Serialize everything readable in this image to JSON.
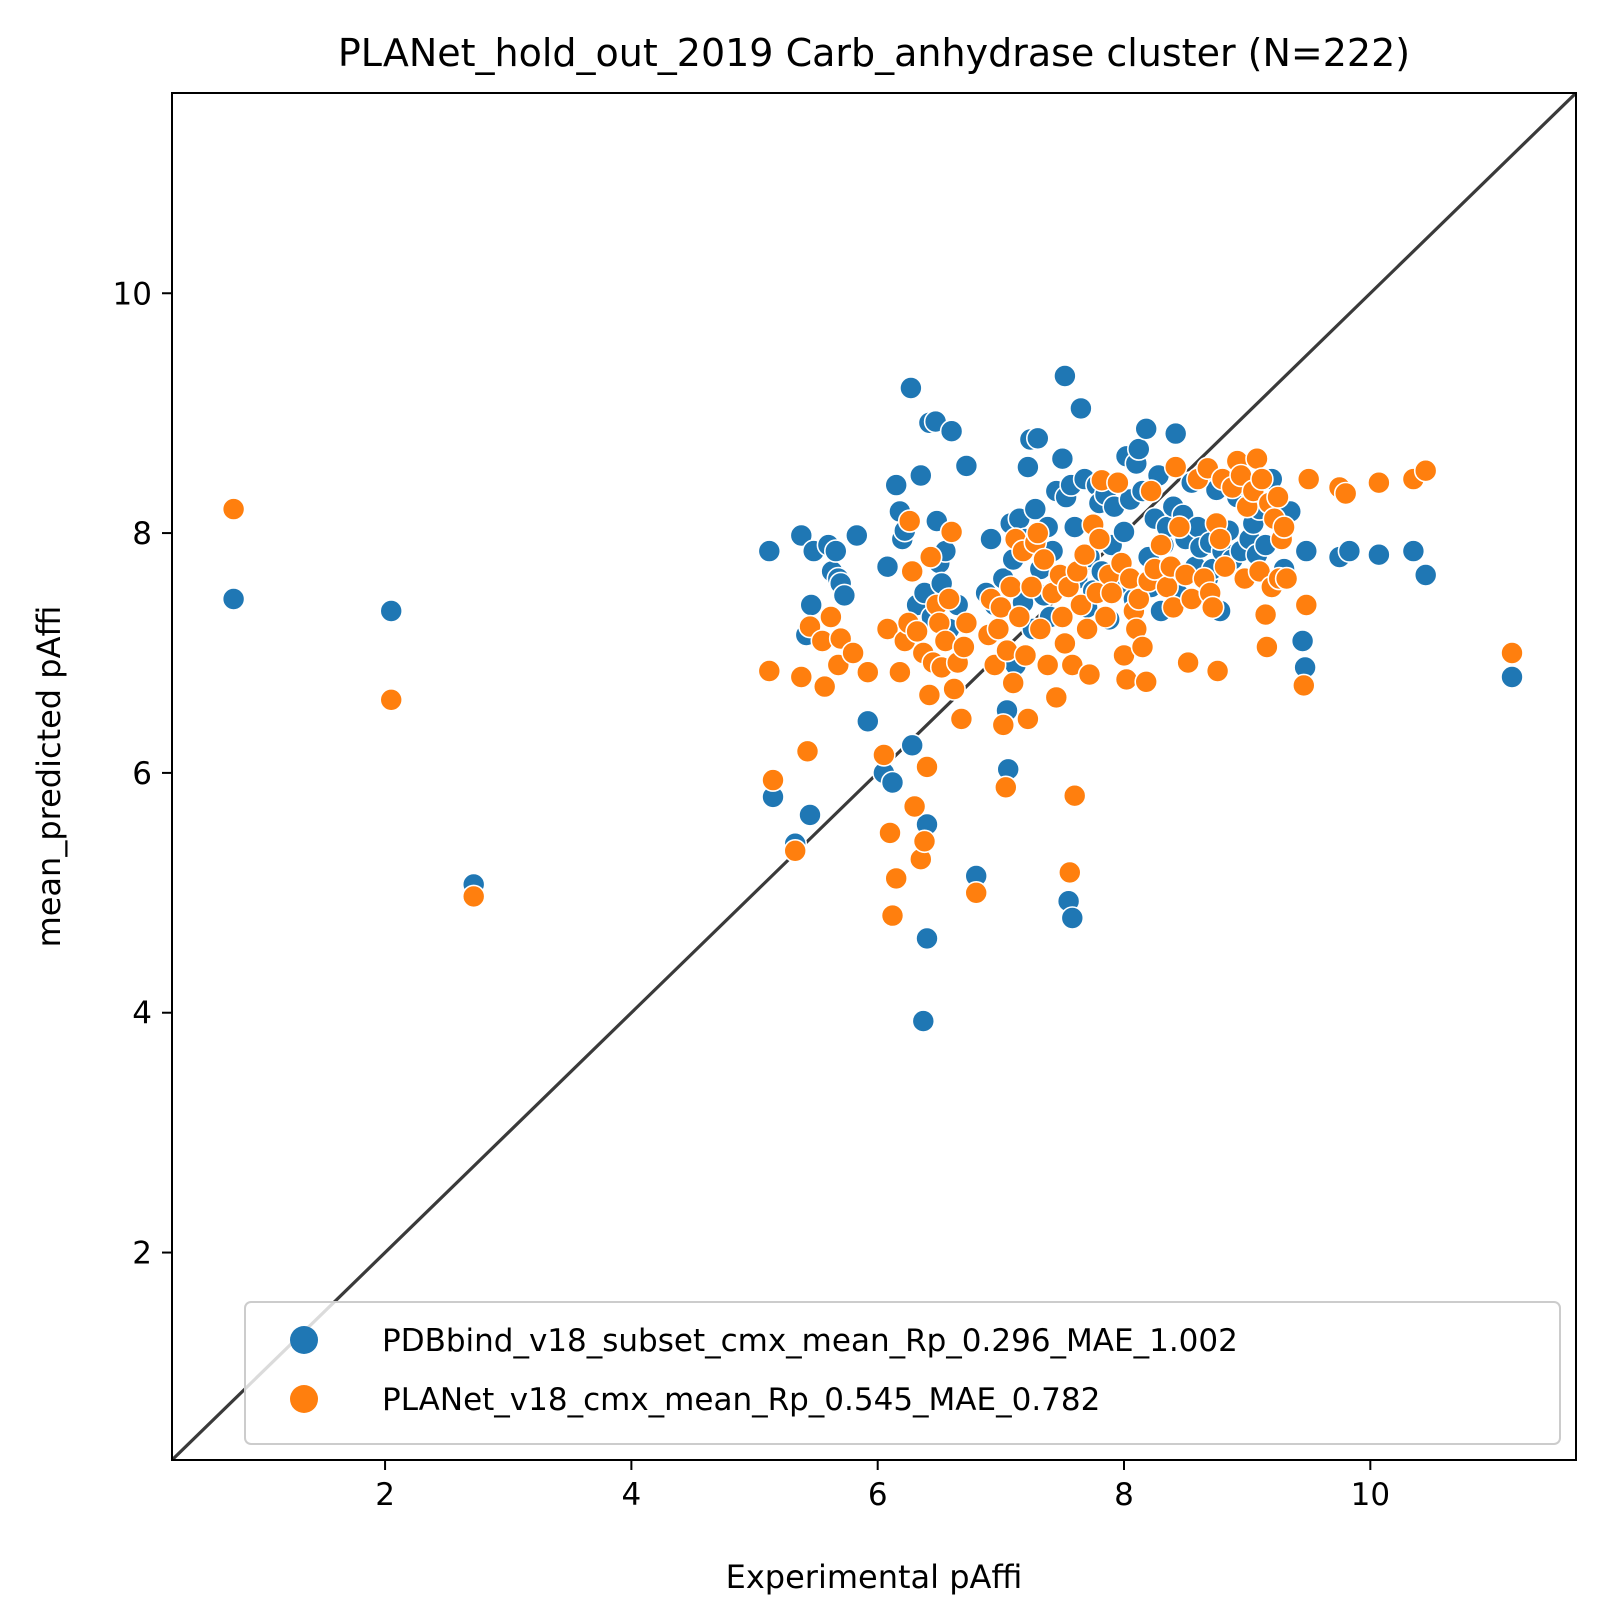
{
  "chart_data": {
    "type": "scatter",
    "title": "PLANet_hold_out_2019 Carb_anhydrase cluster (N=222)",
    "xlabel": "Experimental pAffi",
    "ylabel": "mean_predicted pAffi",
    "xlim": [
      0.27,
      11.67
    ],
    "ylim": [
      0.27,
      11.67
    ],
    "xticks": [
      2,
      4,
      6,
      8,
      10
    ],
    "yticks": [
      2,
      4,
      6,
      8,
      10
    ],
    "grid": false,
    "legend_position": "lower right",
    "reference_line": {
      "type": "identity",
      "color": "#3a3a3a"
    },
    "series": [
      {
        "name": "PDBbind_v18_subset_cmx_mean_Rp_0.296_MAE_1.002",
        "color": "#1f77b4",
        "points": [
          [
            0.77,
            7.45
          ],
          [
            2.05,
            7.35
          ],
          [
            2.72,
            5.07
          ],
          [
            5.12,
            7.85
          ],
          [
            5.15,
            5.8
          ],
          [
            5.33,
            5.41
          ],
          [
            5.38,
            7.98
          ],
          [
            5.42,
            7.15
          ],
          [
            5.45,
            5.65
          ],
          [
            5.46,
            7.4
          ],
          [
            5.48,
            7.85
          ],
          [
            5.6,
            7.9
          ],
          [
            5.63,
            7.68
          ],
          [
            5.66,
            7.85
          ],
          [
            5.68,
            7.62
          ],
          [
            5.7,
            7.58
          ],
          [
            5.73,
            7.48
          ],
          [
            5.83,
            7.98
          ],
          [
            5.92,
            6.43
          ],
          [
            6.05,
            6.0
          ],
          [
            6.08,
            7.72
          ],
          [
            6.12,
            5.92
          ],
          [
            6.15,
            8.4
          ],
          [
            6.18,
            8.18
          ],
          [
            6.2,
            7.95
          ],
          [
            6.22,
            8.02
          ],
          [
            6.27,
            9.21
          ],
          [
            6.28,
            6.23
          ],
          [
            6.32,
            7.4
          ],
          [
            6.35,
            8.48
          ],
          [
            6.37,
            3.93
          ],
          [
            6.38,
            7.5
          ],
          [
            6.4,
            5.57
          ],
          [
            6.4,
            4.62
          ],
          [
            6.42,
            8.92
          ],
          [
            6.44,
            7.3
          ],
          [
            6.47,
            8.93
          ],
          [
            6.48,
            8.1
          ],
          [
            6.5,
            7.75
          ],
          [
            6.52,
            7.58
          ],
          [
            6.55,
            7.85
          ],
          [
            6.58,
            7.2
          ],
          [
            6.6,
            8.85
          ],
          [
            6.65,
            7.4
          ],
          [
            6.72,
            8.56
          ],
          [
            6.8,
            5.14
          ],
          [
            6.88,
            7.5
          ],
          [
            6.92,
            7.95
          ],
          [
            6.95,
            7.4
          ],
          [
            6.98,
            7.2
          ],
          [
            7.02,
            7.62
          ],
          [
            7.05,
            6.52
          ],
          [
            7.06,
            6.03
          ],
          [
            7.08,
            8.08
          ],
          [
            7.1,
            7.78
          ],
          [
            7.12,
            6.9
          ],
          [
            7.15,
            8.12
          ],
          [
            7.18,
            7.42
          ],
          [
            7.2,
            7.95
          ],
          [
            7.22,
            8.55
          ],
          [
            7.24,
            8.78
          ],
          [
            7.26,
            7.2
          ],
          [
            7.28,
            8.2
          ],
          [
            7.3,
            8.79
          ],
          [
            7.32,
            7.7
          ],
          [
            7.35,
            7.48
          ],
          [
            7.38,
            8.05
          ],
          [
            7.4,
            7.3
          ],
          [
            7.42,
            7.85
          ],
          [
            7.45,
            8.35
          ],
          [
            7.48,
            7.6
          ],
          [
            7.5,
            8.62
          ],
          [
            7.52,
            9.31
          ],
          [
            7.53,
            8.3
          ],
          [
            7.55,
            4.93
          ],
          [
            7.57,
            8.4
          ],
          [
            7.58,
            4.79
          ],
          [
            7.6,
            8.05
          ],
          [
            7.62,
            7.62
          ],
          [
            7.65,
            9.04
          ],
          [
            7.68,
            8.45
          ],
          [
            7.7,
            7.38
          ],
          [
            7.72,
            7.8
          ],
          [
            7.75,
            7.52
          ],
          [
            7.78,
            8.4
          ],
          [
            7.8,
            8.25
          ],
          [
            7.82,
            7.68
          ],
          [
            7.85,
            8.32
          ],
          [
            7.88,
            7.28
          ],
          [
            7.9,
            7.9
          ],
          [
            7.92,
            8.22
          ],
          [
            7.95,
            8.42
          ],
          [
            7.98,
            7.58
          ],
          [
            8.0,
            8.01
          ],
          [
            8.02,
            8.64
          ],
          [
            8.05,
            8.28
          ],
          [
            8.08,
            7.45
          ],
          [
            8.1,
            8.58
          ],
          [
            8.12,
            8.7
          ],
          [
            8.15,
            8.35
          ],
          [
            8.18,
            8.87
          ],
          [
            8.2,
            7.8
          ],
          [
            8.22,
            7.55
          ],
          [
            8.25,
            8.12
          ],
          [
            8.28,
            8.48
          ],
          [
            8.3,
            7.35
          ],
          [
            8.32,
            7.9
          ],
          [
            8.35,
            8.05
          ],
          [
            8.38,
            7.68
          ],
          [
            8.4,
            8.22
          ],
          [
            8.42,
            8.83
          ],
          [
            8.45,
            7.48
          ],
          [
            8.48,
            8.15
          ],
          [
            8.5,
            7.95
          ],
          [
            8.55,
            8.42
          ],
          [
            8.58,
            7.72
          ],
          [
            8.6,
            8.05
          ],
          [
            8.62,
            7.88
          ],
          [
            8.65,
            8.48
          ],
          [
            8.68,
            7.62
          ],
          [
            8.7,
            7.92
          ],
          [
            8.72,
            7.7
          ],
          [
            8.75,
            8.36
          ],
          [
            8.78,
            7.35
          ],
          [
            8.8,
            7.85
          ],
          [
            8.85,
            8.02
          ],
          [
            8.88,
            7.78
          ],
          [
            8.92,
            8.3
          ],
          [
            8.95,
            7.85
          ],
          [
            8.98,
            8.4
          ],
          [
            9.02,
            7.95
          ],
          [
            9.05,
            8.08
          ],
          [
            9.08,
            7.82
          ],
          [
            9.1,
            8.2
          ],
          [
            9.15,
            7.9
          ],
          [
            9.2,
            8.45
          ],
          [
            9.25,
            8.12
          ],
          [
            9.3,
            7.7
          ],
          [
            9.35,
            8.18
          ],
          [
            9.45,
            7.1
          ],
          [
            9.47,
            6.88
          ],
          [
            9.48,
            7.85
          ],
          [
            9.75,
            7.8
          ],
          [
            9.83,
            7.85
          ],
          [
            10.07,
            7.82
          ],
          [
            10.35,
            7.85
          ],
          [
            10.45,
            7.65
          ],
          [
            11.15,
            6.8
          ]
        ]
      },
      {
        "name": "PLANet_v18_cmx_mean_Rp_0.545_MAE_0.782",
        "color": "#ff7f0e",
        "points": [
          [
            0.77,
            8.2
          ],
          [
            2.05,
            6.61
          ],
          [
            2.72,
            4.97
          ],
          [
            5.12,
            6.85
          ],
          [
            5.15,
            5.94
          ],
          [
            5.33,
            5.35
          ],
          [
            5.38,
            6.8
          ],
          [
            5.43,
            6.18
          ],
          [
            5.45,
            7.22
          ],
          [
            5.55,
            7.1
          ],
          [
            5.57,
            6.72
          ],
          [
            5.62,
            7.3
          ],
          [
            5.68,
            6.9
          ],
          [
            5.7,
            7.12
          ],
          [
            5.8,
            7.0
          ],
          [
            5.92,
            6.84
          ],
          [
            6.05,
            6.15
          ],
          [
            6.08,
            7.2
          ],
          [
            6.1,
            5.5
          ],
          [
            6.12,
            4.81
          ],
          [
            6.15,
            5.12
          ],
          [
            6.18,
            6.84
          ],
          [
            6.22,
            7.1
          ],
          [
            6.25,
            7.25
          ],
          [
            6.26,
            8.1
          ],
          [
            6.28,
            7.68
          ],
          [
            6.3,
            5.72
          ],
          [
            6.32,
            7.18
          ],
          [
            6.35,
            5.28
          ],
          [
            6.37,
            7.0
          ],
          [
            6.38,
            5.43
          ],
          [
            6.4,
            6.05
          ],
          [
            6.42,
            6.65
          ],
          [
            6.43,
            7.8
          ],
          [
            6.45,
            6.92
          ],
          [
            6.48,
            7.4
          ],
          [
            6.5,
            7.25
          ],
          [
            6.52,
            6.88
          ],
          [
            6.55,
            7.1
          ],
          [
            6.58,
            7.45
          ],
          [
            6.6,
            8.01
          ],
          [
            6.62,
            6.7
          ],
          [
            6.65,
            6.92
          ],
          [
            6.68,
            6.45
          ],
          [
            6.7,
            7.05
          ],
          [
            6.72,
            7.25
          ],
          [
            6.8,
            5.0
          ],
          [
            6.9,
            7.15
          ],
          [
            6.92,
            7.45
          ],
          [
            6.95,
            6.9
          ],
          [
            6.98,
            7.2
          ],
          [
            7.0,
            7.38
          ],
          [
            7.02,
            6.4
          ],
          [
            7.04,
            5.88
          ],
          [
            7.05,
            7.02
          ],
          [
            7.08,
            7.55
          ],
          [
            7.1,
            6.75
          ],
          [
            7.12,
            7.95
          ],
          [
            7.15,
            7.3
          ],
          [
            7.18,
            7.85
          ],
          [
            7.2,
            6.98
          ],
          [
            7.22,
            6.45
          ],
          [
            7.25,
            7.55
          ],
          [
            7.28,
            7.92
          ],
          [
            7.3,
            8.0
          ],
          [
            7.32,
            7.2
          ],
          [
            7.35,
            7.78
          ],
          [
            7.38,
            6.9
          ],
          [
            7.42,
            7.5
          ],
          [
            7.45,
            6.63
          ],
          [
            7.48,
            7.65
          ],
          [
            7.5,
            7.3
          ],
          [
            7.52,
            7.08
          ],
          [
            7.55,
            7.55
          ],
          [
            7.56,
            5.17
          ],
          [
            7.58,
            6.9
          ],
          [
            7.6,
            5.81
          ],
          [
            7.62,
            7.68
          ],
          [
            7.65,
            7.4
          ],
          [
            7.68,
            7.82
          ],
          [
            7.7,
            7.2
          ],
          [
            7.72,
            6.82
          ],
          [
            7.75,
            8.07
          ],
          [
            7.78,
            7.5
          ],
          [
            7.8,
            7.95
          ],
          [
            7.82,
            8.44
          ],
          [
            7.85,
            7.3
          ],
          [
            7.88,
            7.65
          ],
          [
            7.9,
            7.5
          ],
          [
            7.95,
            8.42
          ],
          [
            7.98,
            7.75
          ],
          [
            8.0,
            6.98
          ],
          [
            8.02,
            6.78
          ],
          [
            8.05,
            7.62
          ],
          [
            8.08,
            7.35
          ],
          [
            8.1,
            7.2
          ],
          [
            8.12,
            7.45
          ],
          [
            8.15,
            7.05
          ],
          [
            8.18,
            6.76
          ],
          [
            8.2,
            7.6
          ],
          [
            8.22,
            8.35
          ],
          [
            8.25,
            7.7
          ],
          [
            8.3,
            7.9
          ],
          [
            8.35,
            7.55
          ],
          [
            8.38,
            7.72
          ],
          [
            8.4,
            7.38
          ],
          [
            8.42,
            8.55
          ],
          [
            8.45,
            8.05
          ],
          [
            8.5,
            7.65
          ],
          [
            8.52,
            6.92
          ],
          [
            8.55,
            7.45
          ],
          [
            8.6,
            8.45
          ],
          [
            8.65,
            7.62
          ],
          [
            8.68,
            8.54
          ],
          [
            8.7,
            7.5
          ],
          [
            8.72,
            7.38
          ],
          [
            8.75,
            8.08
          ],
          [
            8.76,
            6.85
          ],
          [
            8.78,
            7.95
          ],
          [
            8.8,
            8.45
          ],
          [
            8.82,
            7.72
          ],
          [
            8.88,
            8.38
          ],
          [
            8.92,
            8.6
          ],
          [
            8.95,
            8.48
          ],
          [
            8.98,
            7.62
          ],
          [
            9.0,
            8.22
          ],
          [
            9.05,
            8.35
          ],
          [
            9.08,
            8.62
          ],
          [
            9.1,
            7.68
          ],
          [
            9.12,
            8.45
          ],
          [
            9.15,
            7.32
          ],
          [
            9.16,
            7.05
          ],
          [
            9.18,
            8.25
          ],
          [
            9.2,
            7.55
          ],
          [
            9.22,
            8.12
          ],
          [
            9.25,
            8.3
          ],
          [
            9.26,
            7.62
          ],
          [
            9.28,
            7.95
          ],
          [
            9.3,
            8.05
          ],
          [
            9.32,
            7.62
          ],
          [
            9.46,
            6.73
          ],
          [
            9.48,
            7.4
          ],
          [
            9.5,
            8.45
          ],
          [
            9.75,
            8.38
          ],
          [
            9.8,
            8.33
          ],
          [
            10.07,
            8.42
          ],
          [
            10.35,
            8.45
          ],
          [
            10.45,
            8.52
          ],
          [
            11.15,
            7.0
          ]
        ]
      }
    ]
  }
}
